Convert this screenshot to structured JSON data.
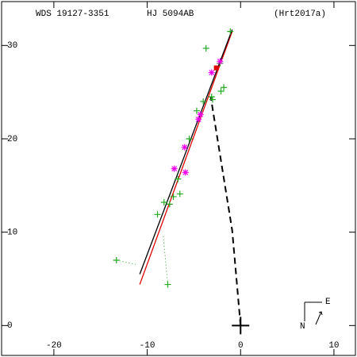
{
  "chart_data": {
    "type": "scatter",
    "title": "WDS 19127-3351",
    "subtitle": "HJ 5094AB",
    "reference": "(Hrt2017a)",
    "compass": {
      "east": "E",
      "north": "N"
    },
    "xlim": [
      -25.6,
      12.3
    ],
    "ylim": [
      -3.2,
      34.7
    ],
    "xticks": [
      -20,
      -10,
      0,
      10
    ],
    "yticks": [
      0,
      10,
      20,
      30
    ],
    "series": [
      {
        "style": "dotted",
        "color": "#22aa22",
        "x": [
          -13.3,
          -11.0,
          null,
          -7.8,
          -8.3
        ],
        "values": [
          7.0,
          6.5,
          null,
          4.4,
          9.8
        ]
      },
      {
        "style": "line",
        "color": "#dd0000",
        "x": [
          -10.8,
          -0.9
        ],
        "values": [
          4.4,
          31.5
        ]
      },
      {
        "style": "line",
        "color": "#000000",
        "x": [
          -10.8,
          -0.9
        ],
        "values": [
          5.5,
          31.7
        ]
      },
      {
        "style": "dashed",
        "color": "#000000",
        "x": [
          0,
          -0.9,
          -3.2
        ],
        "values": [
          0,
          10.2,
          24.5
        ]
      },
      {
        "style": "plus",
        "color": "#22aa22",
        "x": [
          -13.3,
          -7.8,
          -8.9,
          -8.2,
          -7.6,
          -7.2,
          -6.5,
          -6.7,
          -5.5,
          -4.7,
          -4.0,
          -3.1,
          -3.0,
          -2.1,
          -1.8,
          -3.7,
          -2.2,
          -1.1
        ],
        "values": [
          7.0,
          4.4,
          11.9,
          13.2,
          13.0,
          13.8,
          14.1,
          15.7,
          20.0,
          23.0,
          24.0,
          24.5,
          24.2,
          25.1,
          25.5,
          29.7,
          28.1,
          31.5
        ]
      },
      {
        "style": "asterisk",
        "color": "#ee00ee",
        "x": [
          -7.1,
          -5.9,
          -6.0,
          -4.5,
          -4.3,
          -3.1,
          -2.2
        ],
        "values": [
          16.8,
          16.4,
          19.1,
          22.1,
          22.6,
          27.1,
          28.3
        ]
      },
      {
        "style": "square",
        "color": "#dd0000",
        "x": [
          -2.6
        ],
        "values": [
          27.6
        ]
      },
      {
        "style": "bigplus",
        "color": "#000000",
        "x": [
          0
        ],
        "values": [
          0
        ]
      }
    ]
  }
}
